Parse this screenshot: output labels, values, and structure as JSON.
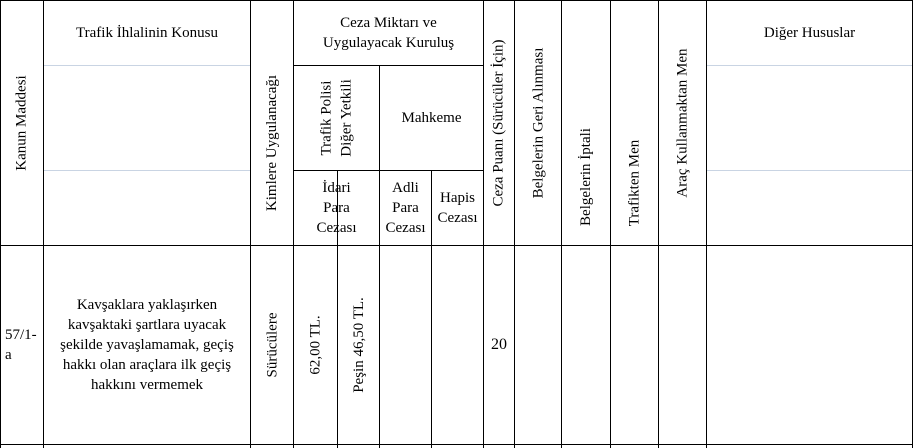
{
  "headers": {
    "kanun_maddesi": "Kanun Maddesi",
    "konu": "Trafik İhlalinin Konusu",
    "kimlere": "Kimlere Uygulanacağı",
    "ceza_miktari": "Ceza Miktarı ve Uygulayacak Kuruluş",
    "trafik_polisi": "Trafik Polisi Diğer Yetkili",
    "mahkeme": "Mahkeme",
    "idari_para": "İdari Para Cezası",
    "adli_para": "Adli Para Cezası",
    "hapis": "Hapis Cezası",
    "ceza_puani": "Ceza Puanı (Sürücüler İçin)",
    "belge_geri": "Belgelerin Geri Alınması",
    "belge_iptal": "Belgelerin İptali",
    "trafikten_men": "Trafikten Men",
    "arac_men": "Araç Kullanmaktan Men",
    "diger": "Diğer Hususlar"
  },
  "rows": [
    {
      "madde": "57/1-a",
      "konu": "Kavşaklara yaklaşırken kavşaktaki şartlara uyacak şekilde yavaşlamamak, geçiş hakkı olan araçlara ilk geçiş hakkını vermemek",
      "kimlere": "Sürücülere",
      "idari_para": "62,00 TL.",
      "pesin": "Peşin 46,50 TL.",
      "adli_para": "",
      "hapis": "",
      "ceza_puani": "20",
      "belge_geri": "",
      "belge_iptal": "",
      "trafikten_men": "",
      "arac_men": "",
      "diger": ""
    }
  ]
}
